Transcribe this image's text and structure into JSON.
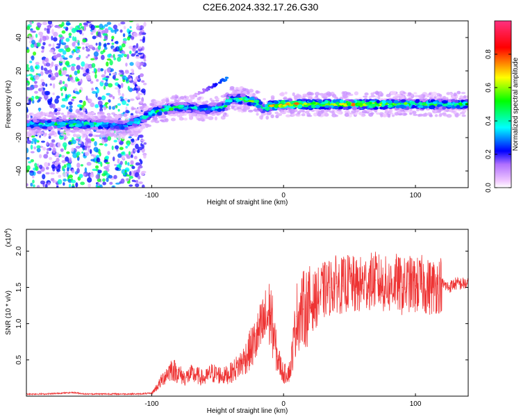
{
  "title": "C2E6.2024.332.17.26.G30",
  "chart_data": [
    {
      "type": "heatmap",
      "xlabel": "Height of straight line (km)",
      "ylabel": "Frequency (Hz)",
      "xlim": [
        -195,
        140
      ],
      "ylim": [
        -50,
        50
      ],
      "xticks": [
        -100,
        0,
        100
      ],
      "xtick_labels": [
        "-100",
        "0",
        "100"
      ],
      "yticks": [
        -40,
        -20,
        0,
        20,
        40
      ],
      "ytick_labels": [
        "-40",
        "-20",
        "0",
        "20",
        "40"
      ],
      "grid": false,
      "colorbar": {
        "label": "Normalized spectral amplitude",
        "range": [
          0,
          1
        ],
        "ticks": [
          0.0,
          0.2,
          0.4,
          0.6,
          0.8
        ],
        "tick_labels": [
          "0.0",
          "0.2",
          "0.4",
          "0.6",
          "0.8"
        ],
        "colormap": [
          "#ffffff",
          "#f0c8ff",
          "#8000ff",
          "#0000ff",
          "#00ffff",
          "#00ff00",
          "#ffff00",
          "#ff0000",
          "#ff0080"
        ]
      },
      "ridge": {
        "x": [
          -195,
          -170,
          -150,
          -140,
          -120,
          -110,
          -100,
          -90,
          -80,
          -70,
          -60,
          -50,
          -43,
          -42,
          -30,
          -20,
          -15,
          -10,
          0,
          20,
          40,
          60,
          80,
          100,
          120,
          140
        ],
        "y": [
          -12,
          -12,
          -12,
          -12,
          -13,
          -10,
          -5,
          -3,
          -2,
          -2,
          -3,
          -2,
          -1,
          3,
          3,
          1,
          -3,
          -1,
          0,
          0,
          0,
          0,
          0,
          0,
          0,
          0
        ],
        "amplitude": [
          0.4,
          0.5,
          0.5,
          0.4,
          0.35,
          0.45,
          0.5,
          0.55,
          0.5,
          0.45,
          0.4,
          0.45,
          0.5,
          0.5,
          0.55,
          0.55,
          0.5,
          0.65,
          0.8,
          0.7,
          0.75,
          0.7,
          0.6,
          0.55,
          0.5,
          0.45
        ]
      },
      "side_branch": {
        "x": [
          -70,
          -42
        ],
        "y": [
          4,
          16
        ]
      },
      "noise_region": {
        "x": [
          -195,
          -105
        ],
        "y": [
          -50,
          50
        ]
      }
    },
    {
      "type": "line",
      "xlabel": "Height of straight line (km)",
      "ylabel": "SNR (10 * v/v)",
      "scale_label": "(x10",
      "scale_exponent": "4",
      "scale_close": ")",
      "xlim": [
        -195,
        140
      ],
      "ylim": [
        0,
        2.3
      ],
      "xticks": [
        -100,
        0,
        100
      ],
      "xtick_labels": [
        "-100",
        "0",
        "100"
      ],
      "yticks": [
        0.5,
        1.0,
        1.5,
        2.0
      ],
      "ytick_labels": [
        "0.5",
        "1.0",
        "1.5",
        "2.0"
      ],
      "grid": false,
      "color": "#ee3333",
      "series": [
        {
          "x": [
            -195,
            -180,
            -170,
            -160,
            -150,
            -140,
            -130,
            -120,
            -110,
            -100,
            -95,
            -90,
            -85,
            -80,
            -75,
            -70,
            -65,
            -60,
            -55,
            -50,
            -45,
            -40,
            -35,
            -30,
            -25,
            -20,
            -15,
            -10,
            -5,
            0,
            5,
            10,
            15,
            20,
            25,
            30,
            35,
            40,
            45,
            50,
            55,
            60,
            65,
            70,
            75,
            80,
            85,
            90,
            95,
            100,
            105,
            110,
            115,
            120,
            125,
            130,
            135,
            140
          ],
          "values": [
            0.03,
            0.03,
            0.04,
            0.05,
            0.03,
            0.03,
            0.03,
            0.03,
            0.03,
            0.04,
            0.15,
            0.28,
            0.38,
            0.32,
            0.25,
            0.3,
            0.28,
            0.24,
            0.32,
            0.3,
            0.28,
            0.32,
            0.4,
            0.5,
            0.65,
            0.8,
            1.0,
            1.15,
            0.55,
            0.3,
            0.35,
            1.1,
            1.2,
            1.25,
            1.35,
            1.45,
            1.5,
            1.55,
            1.52,
            1.58,
            1.5,
            1.55,
            1.58,
            1.6,
            1.55,
            1.52,
            1.58,
            1.5,
            1.55,
            1.52,
            1.55,
            1.5,
            1.52,
            1.55,
            1.5,
            1.55,
            1.55,
            1.55
          ]
        }
      ]
    }
  ]
}
